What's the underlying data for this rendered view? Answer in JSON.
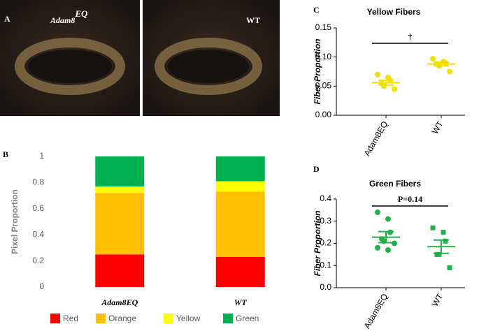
{
  "panel_a": {
    "panel_label": "A",
    "images": [
      {
        "label": "Adam8",
        "superscript": "EQ"
      },
      {
        "label": "WT"
      }
    ]
  },
  "chart_data": [
    {
      "type": "bar",
      "panel_label": "B",
      "y_label": "Pixel Proportion",
      "categories": [
        "Adam8EQ",
        "WT"
      ],
      "series": [
        {
          "name": "Red",
          "color": "#ff0000",
          "values": [
            0.25,
            0.23
          ]
        },
        {
          "name": "Orange",
          "color": "#ffc000",
          "values": [
            0.47,
            0.5
          ]
        },
        {
          "name": "Yellow",
          "color": "#ffff00",
          "values": [
            0.05,
            0.08
          ]
        },
        {
          "name": "Green",
          "color": "#00b050",
          "values": [
            0.23,
            0.19
          ]
        }
      ],
      "ylim": [
        0,
        1
      ],
      "yticks": [
        0,
        0.2,
        0.4,
        0.6,
        0.8,
        1
      ],
      "legend": "bottom"
    },
    {
      "type": "scatter",
      "panel_label": "C",
      "title": "Yellow Fibers",
      "y_label": "Fiber Proportion",
      "annotation": "†",
      "color": "#f0e000",
      "categories": [
        "Adam8EQ",
        "WT"
      ],
      "points": [
        [
          0.07,
          0.065,
          0.06,
          0.055,
          0.05,
          0.045
        ],
        [
          0.097,
          0.092,
          0.09,
          0.088,
          0.085,
          0.075
        ]
      ],
      "means": [
        0.056,
        0.088
      ],
      "errors": [
        0.004,
        0.003
      ],
      "ylim": [
        0,
        0.15
      ],
      "yticks": [
        {
          "value": 0,
          "label": "0.00"
        },
        {
          "value": 0.05,
          "label": "0.05"
        },
        {
          "value": 0.1,
          "label": "0.10"
        },
        {
          "value": 0.15,
          "label": "0.15"
        }
      ]
    },
    {
      "type": "scatter",
      "panel_label": "D",
      "title": "Green Fibers",
      "y_label": "Fiber Proportion",
      "annotation": "P=0.14",
      "color": "#22b04b",
      "categories": [
        "Adam8EQ",
        "WT"
      ],
      "points": [
        [
          0.34,
          0.31,
          0.25,
          0.22,
          0.21,
          0.2,
          0.18,
          0.17
        ],
        [
          0.27,
          0.25,
          0.21,
          0.15,
          0.15,
          0.09
        ]
      ],
      "means": [
        0.228,
        0.185
      ],
      "errors": [
        0.025,
        0.03
      ],
      "ylim": [
        0,
        0.4
      ],
      "yticks": [
        {
          "value": 0,
          "label": "0.0"
        },
        {
          "value": 0.1,
          "label": "0.1"
        },
        {
          "value": 0.2,
          "label": "0.2"
        },
        {
          "value": 0.3,
          "label": "0.3"
        },
        {
          "value": 0.4,
          "label": "0.4"
        }
      ]
    }
  ]
}
